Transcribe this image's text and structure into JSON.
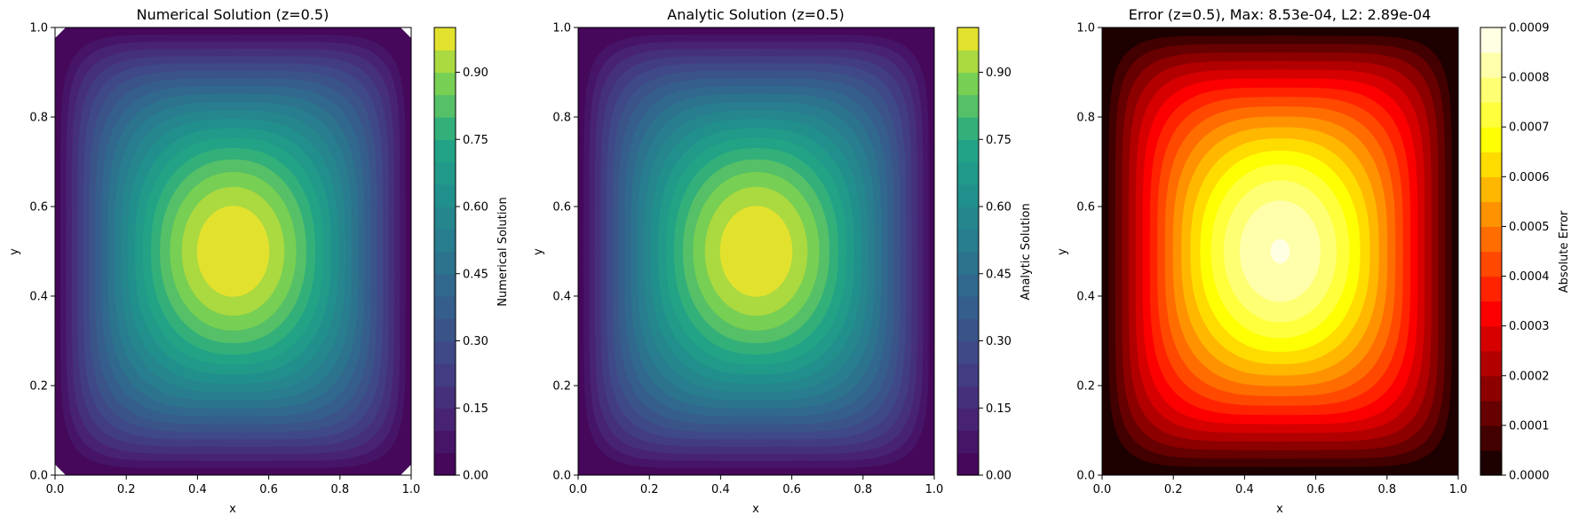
{
  "chart_data": [
    {
      "type": "heatmap",
      "title": "Numerical Solution (z=0.5)",
      "xlabel": "x",
      "ylabel": "y",
      "xlim": [
        0,
        1
      ],
      "ylim": [
        0,
        1
      ],
      "xticks": [
        "0.0",
        "0.2",
        "0.4",
        "0.6",
        "0.8",
        "1.0"
      ],
      "yticks": [
        "0.0",
        "0.2",
        "0.4",
        "0.6",
        "0.8",
        "1.0"
      ],
      "colormap": "viridis",
      "levels": 20,
      "value_range": [
        0,
        1
      ],
      "peak": {
        "x": 0.5,
        "y": 0.5,
        "value": 1.0
      },
      "colorbar": {
        "label": "Numerical Solution",
        "range": [
          0,
          1
        ],
        "ticks": [
          "0.00",
          "0.15",
          "0.30",
          "0.45",
          "0.60",
          "0.75",
          "0.90"
        ]
      },
      "corner_gaps": true
    },
    {
      "type": "heatmap",
      "title": "Analytic Solution (z=0.5)",
      "xlabel": "x",
      "ylabel": "y",
      "xlim": [
        0,
        1
      ],
      "ylim": [
        0,
        1
      ],
      "xticks": [
        "0.0",
        "0.2",
        "0.4",
        "0.6",
        "0.8",
        "1.0"
      ],
      "yticks": [
        "0.0",
        "0.2",
        "0.4",
        "0.6",
        "0.8",
        "1.0"
      ],
      "colormap": "viridis",
      "levels": 20,
      "value_range": [
        0,
        1
      ],
      "peak": {
        "x": 0.5,
        "y": 0.5,
        "value": 1.0
      },
      "colorbar": {
        "label": "Analytic Solution",
        "range": [
          0,
          1
        ],
        "ticks": [
          "0.00",
          "0.15",
          "0.30",
          "0.45",
          "0.60",
          "0.75",
          "0.90"
        ]
      },
      "corner_gaps": false
    },
    {
      "type": "heatmap",
      "title": "Error (z=0.5), Max: 8.53e-04, L2: 2.89e-04",
      "xlabel": "x",
      "ylabel": "y",
      "xlim": [
        0,
        1
      ],
      "ylim": [
        0,
        1
      ],
      "xticks": [
        "0.0",
        "0.2",
        "0.4",
        "0.6",
        "0.8",
        "1.0"
      ],
      "yticks": [
        "0.0",
        "0.2",
        "0.4",
        "0.6",
        "0.8",
        "1.0"
      ],
      "colormap": "hot",
      "levels": 18,
      "value_range": [
        0,
        0.0009
      ],
      "peak": {
        "x": 0.5,
        "y": 0.5,
        "value": 0.000853
      },
      "colorbar": {
        "label": "Absolute Error",
        "range": [
          0,
          0.0009
        ],
        "ticks": [
          "0.0000",
          "0.0001",
          "0.0002",
          "0.0003",
          "0.0004",
          "0.0005",
          "0.0006",
          "0.0007",
          "0.0008",
          "0.0009"
        ]
      },
      "corner_gaps": false
    }
  ]
}
